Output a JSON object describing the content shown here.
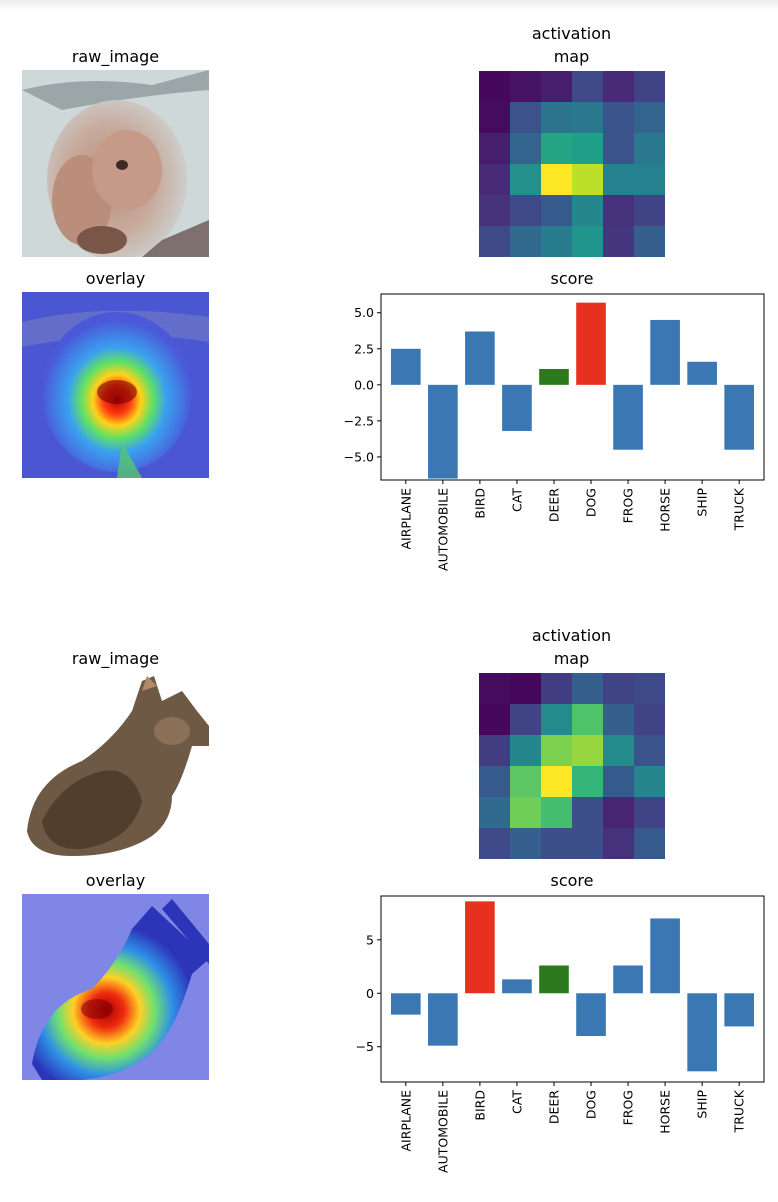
{
  "figures": [
    {
      "raw_title": "raw_image",
      "act_title": "activation\nmap",
      "overlay_title": "overlay",
      "score_title": "score",
      "activation_map": [
        [
          0.02,
          0.05,
          0.08,
          0.22,
          0.12,
          0.2
        ],
        [
          0.03,
          0.25,
          0.38,
          0.4,
          0.26,
          0.32
        ],
        [
          0.08,
          0.32,
          0.58,
          0.56,
          0.26,
          0.4
        ],
        [
          0.12,
          0.5,
          1.0,
          0.9,
          0.44,
          0.44
        ],
        [
          0.14,
          0.22,
          0.28,
          0.46,
          0.14,
          0.2
        ],
        [
          0.22,
          0.34,
          0.42,
          0.52,
          0.16,
          0.3
        ]
      ],
      "chart_data": {
        "type": "bar",
        "categories": [
          "AIRPLANE",
          "AUTOMOBILE",
          "BIRD",
          "CAT",
          "DEER",
          "DOG",
          "FROG",
          "HORSE",
          "SHIP",
          "TRUCK"
        ],
        "values": [
          2.5,
          -6.5,
          3.7,
          -3.2,
          1.1,
          5.7,
          -4.5,
          4.5,
          1.6,
          -4.5
        ],
        "bar_colors": [
          "#3a77b3",
          "#3a77b3",
          "#3a77b3",
          "#3a77b3",
          "#2d7a1e",
          "#e8301f",
          "#3a77b3",
          "#3a77b3",
          "#3a77b3",
          "#3a77b3"
        ],
        "yticks": [
          5.0,
          2.5,
          0.0,
          -2.5,
          -5.0
        ],
        "ytick_labels": [
          "5.0",
          "2.5",
          "0.0",
          "−2.5",
          "−5.0"
        ],
        "ylim": [
          -6.6,
          6.3
        ],
        "title": "score"
      }
    },
    {
      "raw_title": "raw_image",
      "act_title": "activation\nmap",
      "overlay_title": "overlay",
      "score_title": "score",
      "activation_map": [
        [
          0.03,
          0.02,
          0.18,
          0.3,
          0.2,
          0.22
        ],
        [
          0.02,
          0.2,
          0.48,
          0.72,
          0.3,
          0.2
        ],
        [
          0.18,
          0.46,
          0.8,
          0.84,
          0.48,
          0.26
        ],
        [
          0.28,
          0.74,
          1.0,
          0.66,
          0.28,
          0.46
        ],
        [
          0.34,
          0.78,
          0.7,
          0.24,
          0.1,
          0.2
        ],
        [
          0.22,
          0.3,
          0.24,
          0.24,
          0.14,
          0.28
        ]
      ],
      "chart_data": {
        "type": "bar",
        "categories": [
          "AIRPLANE",
          "AUTOMOBILE",
          "BIRD",
          "CAT",
          "DEER",
          "DOG",
          "FROG",
          "HORSE",
          "SHIP",
          "TRUCK"
        ],
        "values": [
          -2.0,
          -4.9,
          8.6,
          1.3,
          2.6,
          -4.0,
          2.6,
          7.0,
          -7.3,
          -3.1
        ],
        "bar_colors": [
          "#3a77b3",
          "#3a77b3",
          "#e8301f",
          "#3a77b3",
          "#2d7a1e",
          "#3a77b3",
          "#3a77b3",
          "#3a77b3",
          "#3a77b3",
          "#3a77b3"
        ],
        "yticks": [
          5,
          0,
          -5
        ],
        "ytick_labels": [
          "5",
          "0",
          "−5"
        ],
        "ylim": [
          -8.3,
          9.1
        ],
        "title": "score"
      }
    }
  ]
}
